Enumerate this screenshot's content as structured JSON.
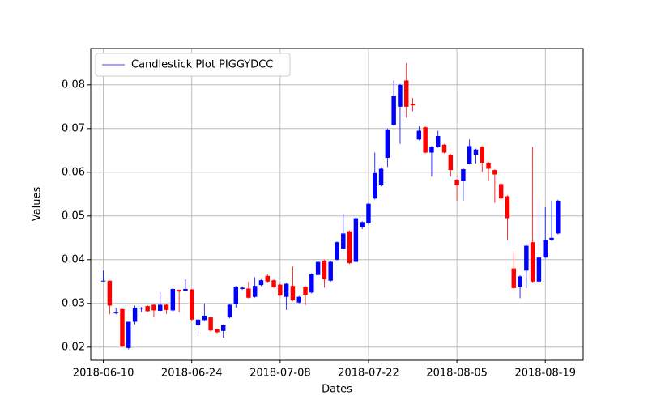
{
  "chart_data": {
    "type": "candlestick",
    "xlabel": "Dates",
    "ylabel": "Values",
    "x": [
      "2018-06-10",
      "2018-06-11",
      "2018-06-12",
      "2018-06-13",
      "2018-06-14",
      "2018-06-15",
      "2018-06-16",
      "2018-06-17",
      "2018-06-18",
      "2018-06-19",
      "2018-06-20",
      "2018-06-21",
      "2018-06-22",
      "2018-06-23",
      "2018-06-24",
      "2018-06-25",
      "2018-06-26",
      "2018-06-27",
      "2018-06-28",
      "2018-06-29",
      "2018-06-30",
      "2018-07-01",
      "2018-07-02",
      "2018-07-03",
      "2018-07-04",
      "2018-07-05",
      "2018-07-06",
      "2018-07-07",
      "2018-07-08",
      "2018-07-09",
      "2018-07-10",
      "2018-07-11",
      "2018-07-12",
      "2018-07-13",
      "2018-07-14",
      "2018-07-15",
      "2018-07-16",
      "2018-07-17",
      "2018-07-18",
      "2018-07-19",
      "2018-07-20",
      "2018-07-21",
      "2018-07-22",
      "2018-07-23",
      "2018-07-24",
      "2018-07-25",
      "2018-07-26",
      "2018-07-27",
      "2018-07-28",
      "2018-07-29",
      "2018-07-30",
      "2018-07-31",
      "2018-08-01",
      "2018-08-02",
      "2018-08-03",
      "2018-08-04",
      "2018-08-05",
      "2018-08-06",
      "2018-08-07",
      "2018-08-08",
      "2018-08-09",
      "2018-08-10",
      "2018-08-11",
      "2018-08-12",
      "2018-08-13",
      "2018-08-14",
      "2018-08-15",
      "2018-08-16",
      "2018-08-17",
      "2018-08-18",
      "2018-08-19",
      "2018-08-20",
      "2018-08-21"
    ],
    "series": [
      {
        "name": "Candlestick Plot PIGGYDCC",
        "color": "blue",
        "down_color": "red",
        "open": [
          0.0351,
          0.0352,
          0.0278,
          0.0287,
          0.0198,
          0.0258,
          0.0288,
          0.0294,
          0.0297,
          0.0283,
          0.0297,
          0.0284,
          0.0331,
          0.0329,
          0.0332,
          0.025,
          0.0262,
          0.0268,
          0.0241,
          0.0237,
          0.0268,
          0.0298,
          0.0333,
          0.0334,
          0.0315,
          0.0342,
          0.0363,
          0.0353,
          0.0343,
          0.0315,
          0.034,
          0.0302,
          0.0338,
          0.0325,
          0.0365,
          0.0398,
          0.0352,
          0.04,
          0.0425,
          0.0465,
          0.0395,
          0.0475,
          0.0483,
          0.054,
          0.057,
          0.0633,
          0.0708,
          0.075,
          0.081,
          0.0757,
          0.0675,
          0.0703,
          0.0645,
          0.0658,
          0.0663,
          0.064,
          0.0583,
          0.058,
          0.062,
          0.064,
          0.0658,
          0.0622,
          0.0605,
          0.0573,
          0.0545,
          0.038,
          0.0338,
          0.0375,
          0.044,
          0.035,
          0.0405,
          0.0445,
          0.046
        ],
        "high": [
          0.0375,
          0.0352,
          0.029,
          0.0288,
          0.0258,
          0.0295,
          0.0292,
          0.0296,
          0.0298,
          0.0325,
          0.0298,
          0.0335,
          0.0332,
          0.0355,
          0.0333,
          0.0265,
          0.03,
          0.027,
          0.0242,
          0.0252,
          0.0298,
          0.034,
          0.0337,
          0.035,
          0.036,
          0.0355,
          0.0367,
          0.0355,
          0.0345,
          0.0347,
          0.0385,
          0.0317,
          0.034,
          0.0369,
          0.0397,
          0.04,
          0.0397,
          0.0442,
          0.0505,
          0.0467,
          0.0497,
          0.0488,
          0.053,
          0.0645,
          0.061,
          0.07,
          0.081,
          0.0802,
          0.085,
          0.077,
          0.0705,
          0.0705,
          0.066,
          0.0695,
          0.0665,
          0.0642,
          0.0585,
          0.0609,
          0.0675,
          0.0654,
          0.066,
          0.0624,
          0.0607,
          0.0575,
          0.0547,
          0.042,
          0.0364,
          0.0434,
          0.0658,
          0.0535,
          0.052,
          0.0535,
          0.0537
        ],
        "low": [
          0.035,
          0.0275,
          0.0275,
          0.02,
          0.0195,
          0.0252,
          0.028,
          0.028,
          0.0268,
          0.028,
          0.0276,
          0.0282,
          0.028,
          0.0328,
          0.026,
          0.0225,
          0.026,
          0.0236,
          0.0232,
          0.0222,
          0.0266,
          0.029,
          0.0331,
          0.0311,
          0.0313,
          0.034,
          0.0348,
          0.0335,
          0.0316,
          0.0285,
          0.0305,
          0.03,
          0.0295,
          0.0323,
          0.0363,
          0.0336,
          0.035,
          0.0398,
          0.0423,
          0.039,
          0.0393,
          0.047,
          0.0481,
          0.0538,
          0.0568,
          0.0612,
          0.0706,
          0.0665,
          0.0725,
          0.074,
          0.0673,
          0.0643,
          0.059,
          0.0656,
          0.0643,
          0.059,
          0.0535,
          0.0535,
          0.0618,
          0.062,
          0.06,
          0.058,
          0.053,
          0.0538,
          0.0445,
          0.0333,
          0.0312,
          0.0335,
          0.0348,
          0.0348,
          0.0403,
          0.0443,
          0.0458
        ],
        "close": [
          0.0352,
          0.0295,
          0.0279,
          0.0202,
          0.0258,
          0.0289,
          0.029,
          0.0282,
          0.0284,
          0.0297,
          0.0285,
          0.0333,
          0.0327,
          0.0333,
          0.0263,
          0.0263,
          0.0272,
          0.0238,
          0.0234,
          0.025,
          0.0297,
          0.0338,
          0.0336,
          0.0313,
          0.034,
          0.0353,
          0.035,
          0.0337,
          0.0318,
          0.0345,
          0.0307,
          0.0315,
          0.032,
          0.0367,
          0.0395,
          0.0355,
          0.0395,
          0.044,
          0.046,
          0.0392,
          0.0495,
          0.0486,
          0.0528,
          0.0598,
          0.0608,
          0.0698,
          0.0775,
          0.08,
          0.075,
          0.0753,
          0.0695,
          0.0645,
          0.0658,
          0.0683,
          0.0645,
          0.0605,
          0.057,
          0.0607,
          0.066,
          0.0652,
          0.0622,
          0.0608,
          0.0595,
          0.054,
          0.0495,
          0.0335,
          0.0362,
          0.0432,
          0.035,
          0.0405,
          0.0445,
          0.045,
          0.0535
        ]
      }
    ],
    "xlim": [
      "2018-06-08",
      "2018-08-25"
    ],
    "xticks": [
      "2018-06-10",
      "2018-06-24",
      "2018-07-08",
      "2018-07-22",
      "2018-08-05",
      "2018-08-19"
    ],
    "ylim": [
      0.017,
      0.0883
    ],
    "yticks": [
      0.02,
      0.03,
      0.04,
      0.05,
      0.06,
      0.07,
      0.08
    ],
    "grid": true,
    "legend": "upper left"
  }
}
